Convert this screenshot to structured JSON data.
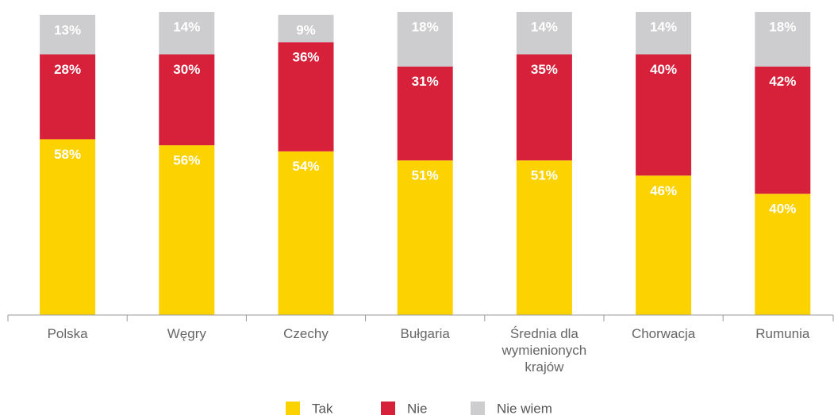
{
  "chart_data": {
    "type": "stacked_bar",
    "categories": [
      "Polska",
      "Węgry",
      "Czechy",
      "Bułgaria",
      "Średnia dla wymienionych krajów",
      "Chorwacja",
      "Rumunia"
    ],
    "series": [
      {
        "name": "Tak",
        "color": "#fcd200",
        "values": [
          58,
          56,
          54,
          51,
          51,
          46,
          40
        ],
        "value_labels": [
          "58%",
          "56%",
          "54%",
          "51%",
          "51%",
          "46%",
          "40%"
        ]
      },
      {
        "name": "Nie",
        "color": "#d7213a",
        "values": [
          28,
          30,
          36,
          31,
          35,
          40,
          42
        ],
        "value_labels": [
          "28%",
          "30%",
          "36%",
          "31%",
          "35%",
          "40%",
          "42%"
        ]
      },
      {
        "name": "Nie wiem",
        "color": "#cdcdcf",
        "values": [
          13,
          14,
          9,
          18,
          14,
          14,
          18
        ],
        "value_labels": [
          "13%",
          "14%",
          "9%",
          "18%",
          "14%",
          "14%",
          "18%"
        ]
      }
    ]
  }
}
